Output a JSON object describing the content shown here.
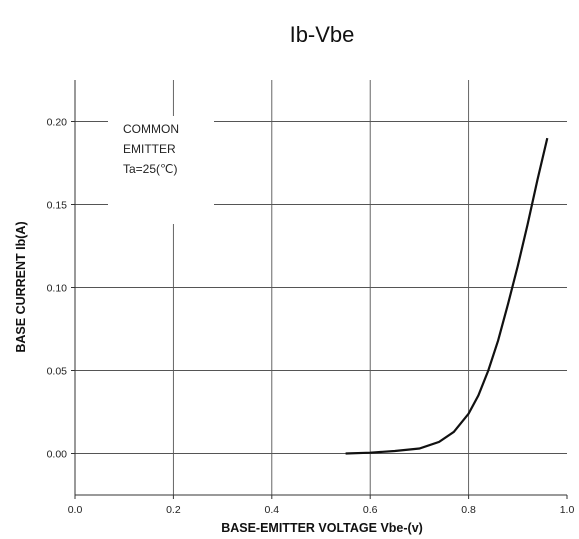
{
  "chart_data": {
    "type": "line",
    "title": "Ib-Vbe",
    "xlabel": "BASE-EMITTER VOLTAGE Vbe-(v)",
    "ylabel": "BASE CURRENT Ib(A)",
    "xlim": [
      0.0,
      1.0
    ],
    "ylim": [
      -0.025,
      0.225
    ],
    "xticks": [
      "0.0",
      "0.2",
      "0.4",
      "0.6",
      "0.8",
      "1.0"
    ],
    "yticks": [
      "0.00",
      "0.05",
      "0.10",
      "0.15",
      "0.20"
    ],
    "grid": true,
    "annotation": [
      "COMMON",
      "EMITTER",
      "Ta=25(℃)"
    ],
    "series": [
      {
        "color": "#111111",
        "x": [
          0.55,
          0.6,
          0.65,
          0.7,
          0.74,
          0.77,
          0.8,
          0.82,
          0.84,
          0.86,
          0.88,
          0.9,
          0.92,
          0.94,
          0.96
        ],
        "y": [
          0.0,
          0.0005,
          0.0015,
          0.003,
          0.007,
          0.013,
          0.024,
          0.035,
          0.05,
          0.068,
          0.09,
          0.113,
          0.138,
          0.165,
          0.19
        ]
      }
    ]
  }
}
